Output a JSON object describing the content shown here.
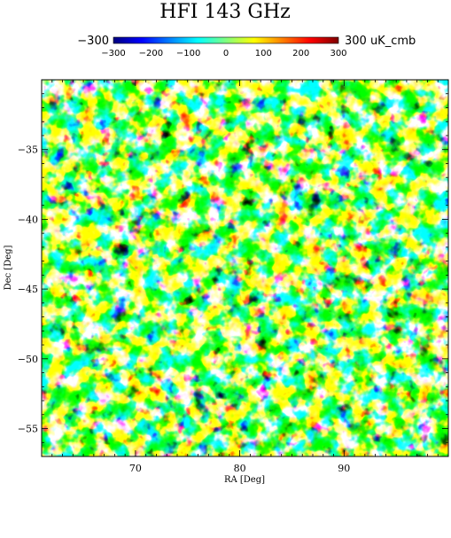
{
  "figure": {
    "title": "HFI 143 GHz",
    "colorbar": {
      "min_label": "−300",
      "max_label": "300 uK_cmb",
      "ticks": [
        "−300",
        "−200",
        "−100",
        "0",
        "100",
        "200",
        "300"
      ],
      "tick_values": [
        -300,
        -200,
        -100,
        0,
        100,
        200,
        300
      ],
      "range": [
        -300,
        300
      ],
      "colormap": [
        "#00007f",
        "#0000ff",
        "#00ffff",
        "#ffff00",
        "#ff0000",
        "#7f0000"
      ]
    },
    "map": {
      "xlabel": "RA [Deg]",
      "ylabel": "Dec [Deg]",
      "xrange": [
        61,
        100
      ],
      "yrange": [
        -57,
        -30
      ],
      "xticks": [
        70,
        80,
        90
      ],
      "xtick_labels": [
        "70",
        "80",
        "90"
      ],
      "yticks": [
        -35,
        -40,
        -45,
        -50,
        -55
      ],
      "ytick_labels": [
        "−35",
        "−40",
        "−45",
        "−50",
        "−55"
      ]
    }
  }
}
